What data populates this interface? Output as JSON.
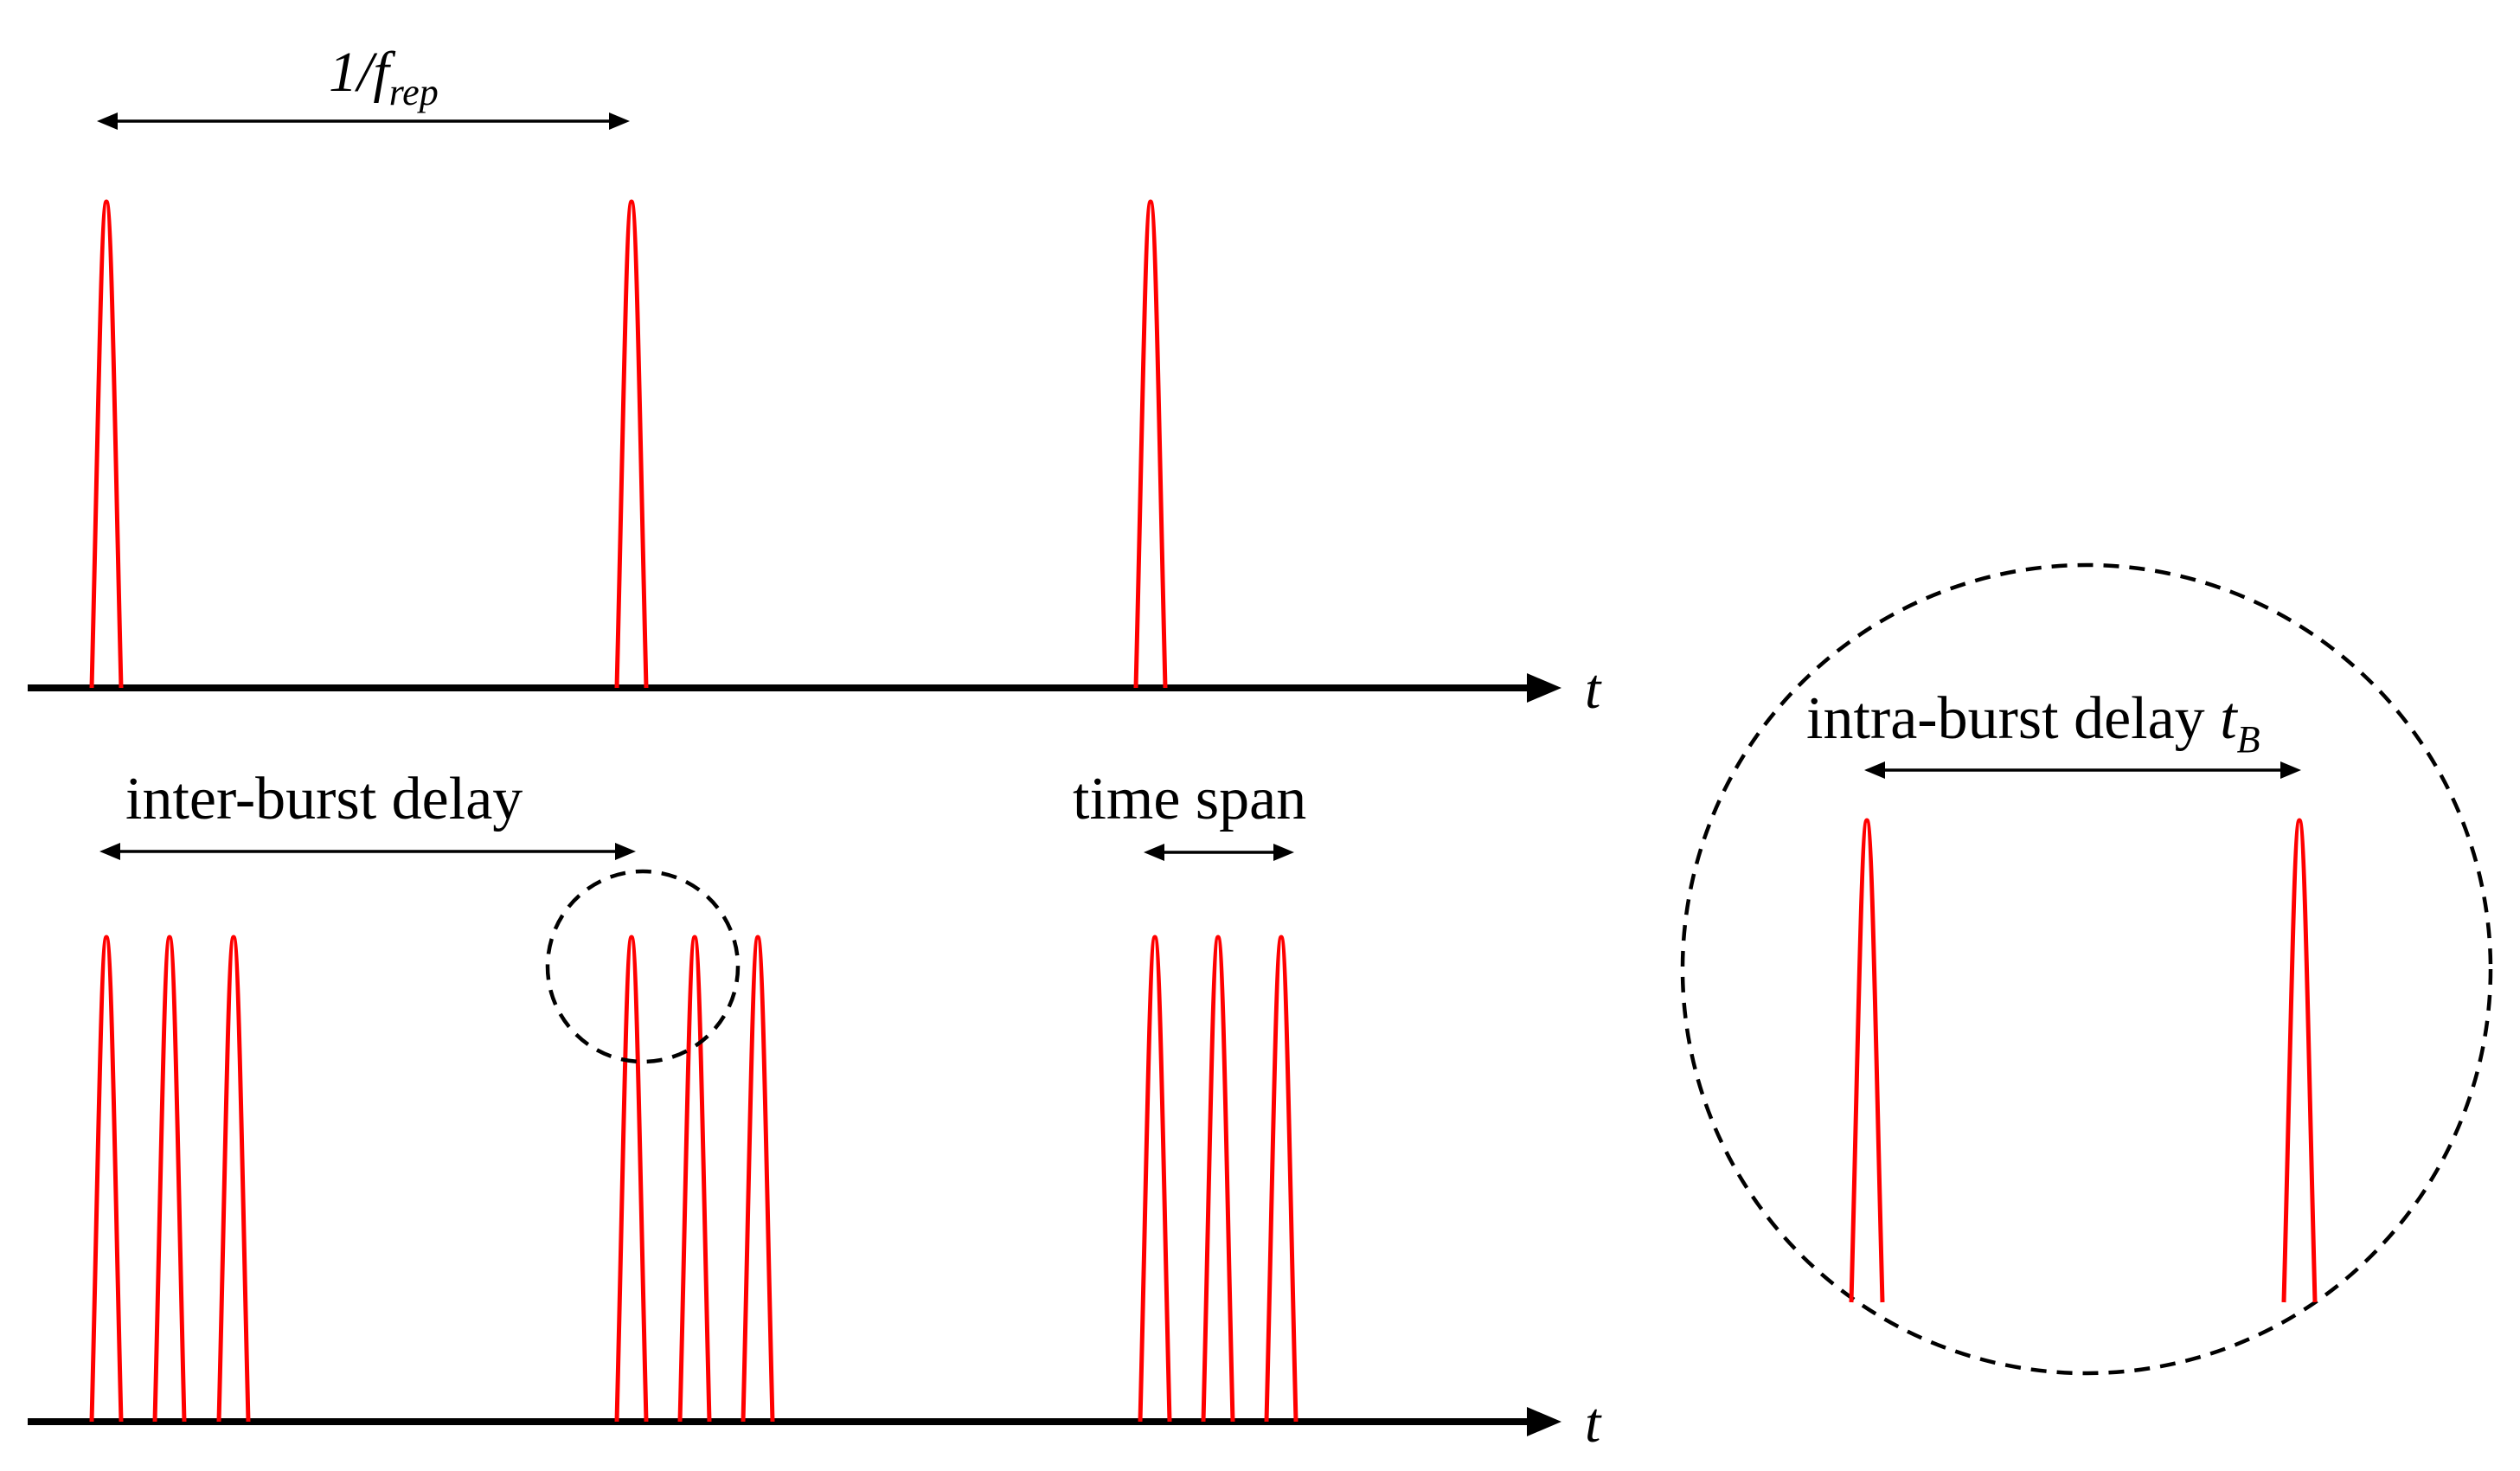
{
  "top_train": {
    "period_label_main": "1/",
    "period_label_f": "f",
    "period_label_sub": "rep",
    "axis_label": "t"
  },
  "bottom_train": {
    "inter_burst_label": "inter-burst delay",
    "time_span_label": "time span",
    "axis_label": "t"
  },
  "zoom": {
    "intra_burst_label": "intra-burst delay ",
    "intra_burst_var": "t",
    "intra_burst_sub": "B"
  },
  "colors": {
    "pulse": "#ff0000",
    "axis": "#000000"
  }
}
